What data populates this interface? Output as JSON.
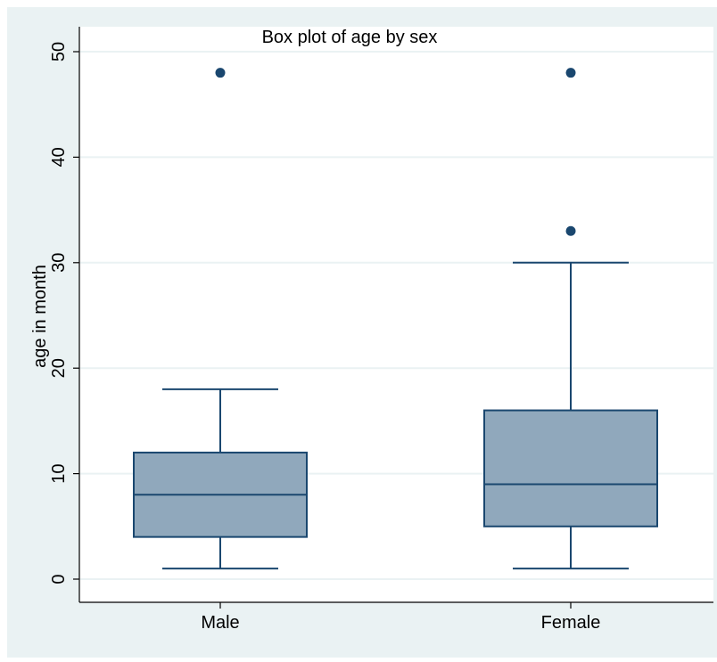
{
  "chart_data": {
    "type": "box",
    "title": "Box plot of age by sex",
    "ylabel": "age in month",
    "xlabel": "",
    "ylim": [
      0,
      50
    ],
    "yticks": [
      0,
      10,
      20,
      30,
      40,
      50
    ],
    "grid": true,
    "categories": [
      "Male",
      "Female"
    ],
    "boxes": [
      {
        "category": "Male",
        "whisker_low": 1,
        "q1": 4,
        "median": 8,
        "q3": 12,
        "whisker_high": 18,
        "outliers": [
          48
        ]
      },
      {
        "category": "Female",
        "whisker_low": 1,
        "q1": 5,
        "median": 9,
        "q3": 16,
        "whisker_high": 30,
        "outliers": [
          33,
          48
        ]
      }
    ],
    "colors": {
      "outer_background": "#eaf2f3",
      "plot_background": "#ffffff",
      "grid": "#eaf2f3",
      "box_fill": "#90a8bc",
      "line": "#1a476f",
      "axis": "#000000"
    }
  }
}
